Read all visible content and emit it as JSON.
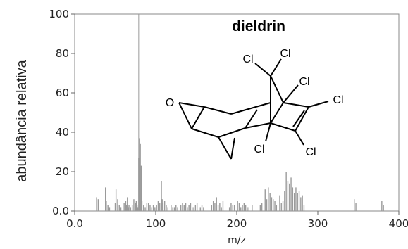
{
  "chart_data": {
    "type": "bar",
    "title": "dieldrin",
    "xlabel": "m/z",
    "ylabel": "abundância relativa",
    "xlim": [
      0,
      400
    ],
    "ylim": [
      0,
      100
    ],
    "x_ticks": [
      "0.0",
      "100",
      "200",
      "300",
      "400"
    ],
    "y_ticks": [
      "0.0",
      "20",
      "40",
      "60",
      "80",
      "100"
    ],
    "grid": false,
    "bar_color": "#9a9a9a",
    "series": [
      {
        "x": [
          27,
          29,
          38,
          39,
          41,
          42,
          43,
          50,
          51,
          53,
          55,
          57,
          61,
          63,
          64,
          65,
          66,
          67,
          69,
          71,
          73,
          75,
          76,
          77,
          78,
          79,
          80,
          81,
          82,
          83,
          85,
          87,
          89,
          91,
          93,
          95,
          97,
          99,
          101,
          103,
          105,
          107,
          108,
          109,
          111,
          113,
          115,
          119,
          121,
          123,
          125,
          127,
          131,
          133,
          135,
          137,
          139,
          141,
          143,
          145,
          147,
          149,
          151,
          155,
          157,
          159,
          169,
          171,
          173,
          175,
          177,
          179,
          181,
          183,
          191,
          193,
          195,
          197,
          201,
          203,
          205,
          207,
          209,
          211,
          213,
          215,
          219,
          229,
          231,
          235,
          237,
          239,
          241,
          243,
          245,
          247,
          249,
          253,
          255,
          257,
          259,
          261,
          263,
          265,
          267,
          269,
          271,
          273,
          275,
          277,
          279,
          281,
          283,
          345,
          347,
          379,
          381
        ],
        "y": [
          7,
          6,
          12,
          5,
          3,
          2,
          2,
          4,
          11,
          6,
          3,
          2,
          4,
          5,
          3,
          7,
          2,
          3,
          2,
          3,
          6,
          4,
          5,
          3,
          2,
          27,
          37,
          34,
          23,
          5,
          3,
          2,
          4,
          4,
          3,
          2,
          3,
          2,
          3,
          5,
          4,
          15,
          6,
          4,
          5,
          3,
          2,
          3,
          2,
          2,
          3,
          2,
          3,
          4,
          3,
          4,
          2,
          3,
          4,
          2,
          2,
          3,
          4,
          2,
          3,
          2,
          3,
          5,
          4,
          7,
          3,
          4,
          2,
          5,
          2,
          4,
          3,
          3,
          5,
          4,
          2,
          3,
          4,
          3,
          2,
          2,
          3,
          3,
          4,
          11,
          6,
          12,
          9,
          7,
          6,
          5,
          3,
          8,
          4,
          5,
          10,
          20,
          15,
          14,
          17,
          12,
          9,
          12,
          9,
          10,
          7,
          8,
          3,
          6,
          4,
          5,
          3
        ]
      }
    ],
    "marker_line_x": 79,
    "structure_atom_labels": [
      "O",
      "Cl",
      "Cl",
      "Cl",
      "Cl",
      "Cl",
      "Cl"
    ]
  }
}
